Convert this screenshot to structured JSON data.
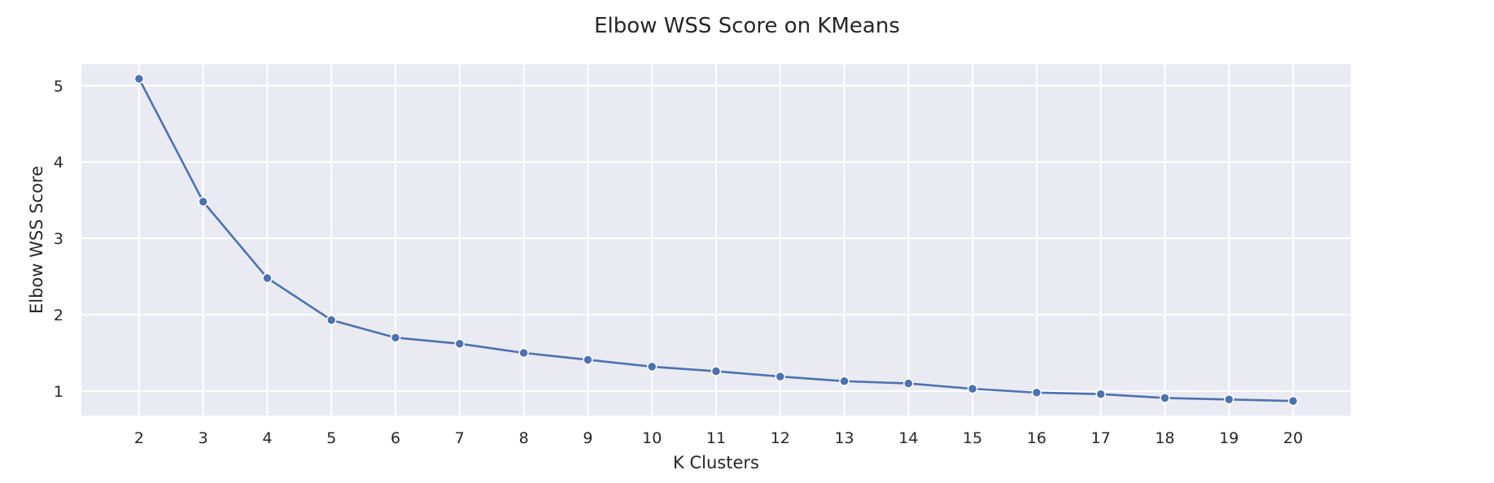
{
  "chart_data": {
    "type": "line",
    "title": "Elbow WSS Score on KMeans",
    "xlabel": "K Clusters",
    "ylabel": "Elbow WSS Score",
    "x": [
      2,
      3,
      4,
      5,
      6,
      7,
      8,
      9,
      10,
      11,
      12,
      13,
      14,
      15,
      16,
      17,
      18,
      19,
      20
    ],
    "xticks": [
      "2",
      "3",
      "4",
      "5",
      "6",
      "7",
      "8",
      "9",
      "10",
      "11",
      "12",
      "13",
      "14",
      "15",
      "16",
      "17",
      "18",
      "19",
      "20"
    ],
    "yticks": [
      "1",
      "2",
      "3",
      "4",
      "5"
    ],
    "xlim": [
      1.1,
      20.9
    ],
    "ylim": [
      0.68,
      5.28
    ],
    "series": [
      {
        "values": [
          5.09,
          3.48,
          2.48,
          1.93,
          1.7,
          1.62,
          1.5,
          1.41,
          1.32,
          1.26,
          1.19,
          1.13,
          1.1,
          1.03,
          0.98,
          0.96,
          0.91,
          0.89,
          0.87
        ],
        "color": "#4c72b0",
        "marker": "circle"
      }
    ],
    "grid": true,
    "background_color": "#eaeaf2",
    "legend": "none"
  }
}
